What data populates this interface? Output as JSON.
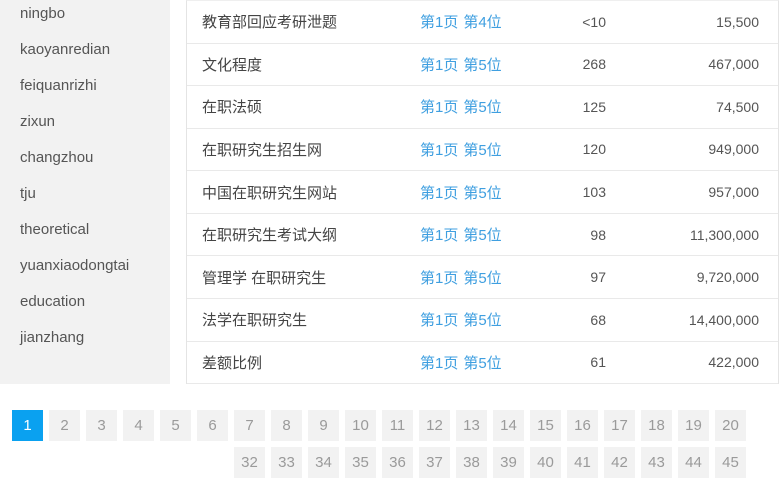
{
  "colors": {
    "accent_link": "#3f9fe0",
    "active_page_bg": "#0aa1f0",
    "sidebar_bg": "#f2f2f2",
    "page_button_bg": "#f2f2f2",
    "page_button_text": "#9a9a9a"
  },
  "sidebar": {
    "items": [
      "ningbo",
      "kaoyanredian",
      "feiquanrizhi",
      "zixun",
      "changzhou",
      "tju",
      "theoretical",
      "yuanxiaodongtai",
      "education",
      "jianzhang"
    ]
  },
  "table": {
    "rows": [
      {
        "keyword": "教育部回应考研泄题",
        "page": "第1页",
        "position": "第4位",
        "rank_value": "<10",
        "volume": "15,500"
      },
      {
        "keyword": "文化程度",
        "page": "第1页",
        "position": "第5位",
        "rank_value": "268",
        "volume": "467,000"
      },
      {
        "keyword": "在职法硕",
        "page": "第1页",
        "position": "第5位",
        "rank_value": "125",
        "volume": "74,500"
      },
      {
        "keyword": "在职研究生招生网",
        "page": "第1页",
        "position": "第5位",
        "rank_value": "120",
        "volume": "949,000"
      },
      {
        "keyword": "中国在职研究生网站",
        "page": "第1页",
        "position": "第5位",
        "rank_value": "103",
        "volume": "957,000"
      },
      {
        "keyword": "在职研究生考试大纲",
        "page": "第1页",
        "position": "第5位",
        "rank_value": "98",
        "volume": "11,300,000"
      },
      {
        "keyword": "管理学 在职研究生",
        "page": "第1页",
        "position": "第5位",
        "rank_value": "97",
        "volume": "9,720,000"
      },
      {
        "keyword": "法学在职研究生",
        "page": "第1页",
        "position": "第5位",
        "rank_value": "68",
        "volume": "14,400,000"
      },
      {
        "keyword": "差额比例",
        "page": "第1页",
        "position": "第5位",
        "rank_value": "61",
        "volume": "422,000"
      }
    ]
  },
  "pagination": {
    "active": "1",
    "row1": [
      "1",
      "2",
      "3",
      "4",
      "5",
      "6",
      "7",
      "8",
      "9",
      "10",
      "11",
      "12",
      "13",
      "14",
      "15",
      "16",
      "17",
      "18",
      "19",
      "20"
    ],
    "row2": [
      "32",
      "33",
      "34",
      "35",
      "36",
      "37",
      "38",
      "39",
      "40",
      "41",
      "42",
      "43",
      "44",
      "45"
    ]
  }
}
